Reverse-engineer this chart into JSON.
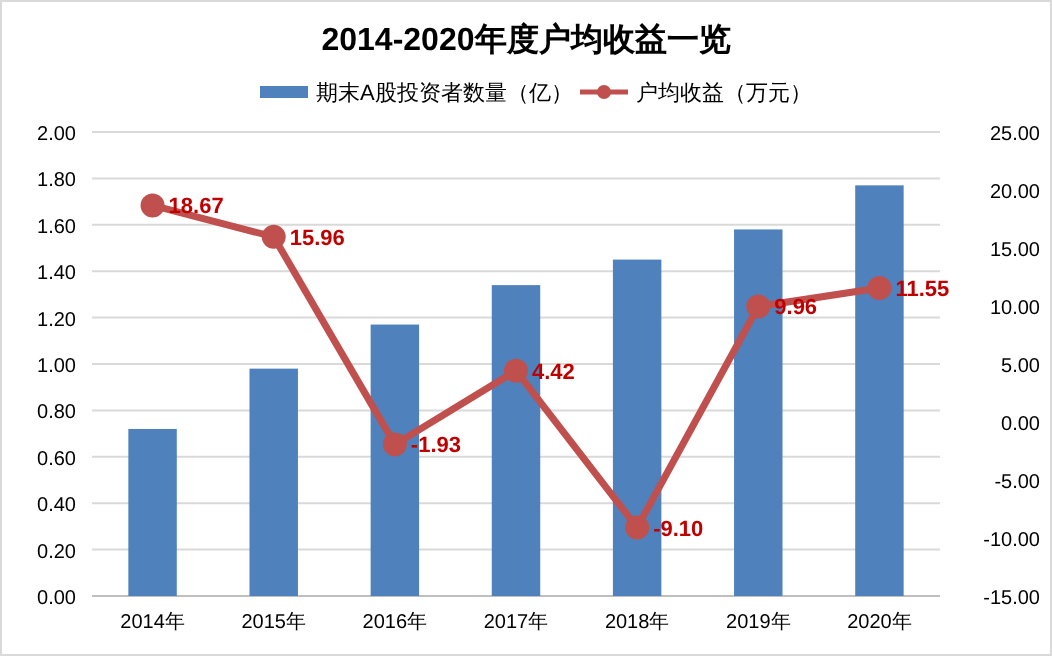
{
  "chart_data": {
    "type": "bar",
    "title": "2014-2020年度户均收益一览",
    "categories": [
      "2014年",
      "2015年",
      "2016年",
      "2017年",
      "2018年",
      "2019年",
      "2020年"
    ],
    "series": [
      {
        "name": "期末A股投资者数量（亿）",
        "color": "#4f81bd",
        "values": [
          0.72,
          0.98,
          1.17,
          1.34,
          1.45,
          1.58,
          1.77
        ]
      },
      {
        "name": "户均收益（万元）",
        "type": "line",
        "axis": "y2",
        "color": "#c0504d",
        "marker": "circle",
        "values": [
          18.67,
          15.96,
          -1.93,
          4.42,
          -9.1,
          9.96,
          11.55
        ],
        "value_labels": [
          "18.67",
          "15.96",
          "-1.93",
          "4.42",
          "-9.10",
          "9.96",
          "11.55"
        ]
      }
    ],
    "ylim": [
      0,
      2
    ],
    "yticks": [
      {
        "value": 0,
        "label": "0.00"
      },
      {
        "value": 0.2,
        "label": "0.20"
      },
      {
        "value": 0.4,
        "label": "0.40"
      },
      {
        "value": 0.6,
        "label": "0.60"
      },
      {
        "value": 0.8,
        "label": "0.80"
      },
      {
        "value": 1,
        "label": "1.00"
      },
      {
        "value": 1.2,
        "label": "1.20"
      },
      {
        "value": 1.4,
        "label": "1.40"
      },
      {
        "value": 1.6,
        "label": "1.60"
      },
      {
        "value": 1.8,
        "label": "1.80"
      },
      {
        "value": 2,
        "label": "2.00"
      }
    ],
    "y2lim": [
      -15,
      25
    ],
    "y2ticks": [
      {
        "value": -15,
        "label": "-15.00"
      },
      {
        "value": -10,
        "label": "-10.00"
      },
      {
        "value": -5,
        "label": "-5.00"
      },
      {
        "value": 0,
        "label": "0.00"
      },
      {
        "value": 5,
        "label": "5.00"
      },
      {
        "value": 10,
        "label": "10.00"
      },
      {
        "value": 15,
        "label": "15.00"
      },
      {
        "value": 20,
        "label": "20.00"
      },
      {
        "value": 25,
        "label": "25.00"
      }
    ],
    "grid": "y",
    "legend": "top"
  }
}
